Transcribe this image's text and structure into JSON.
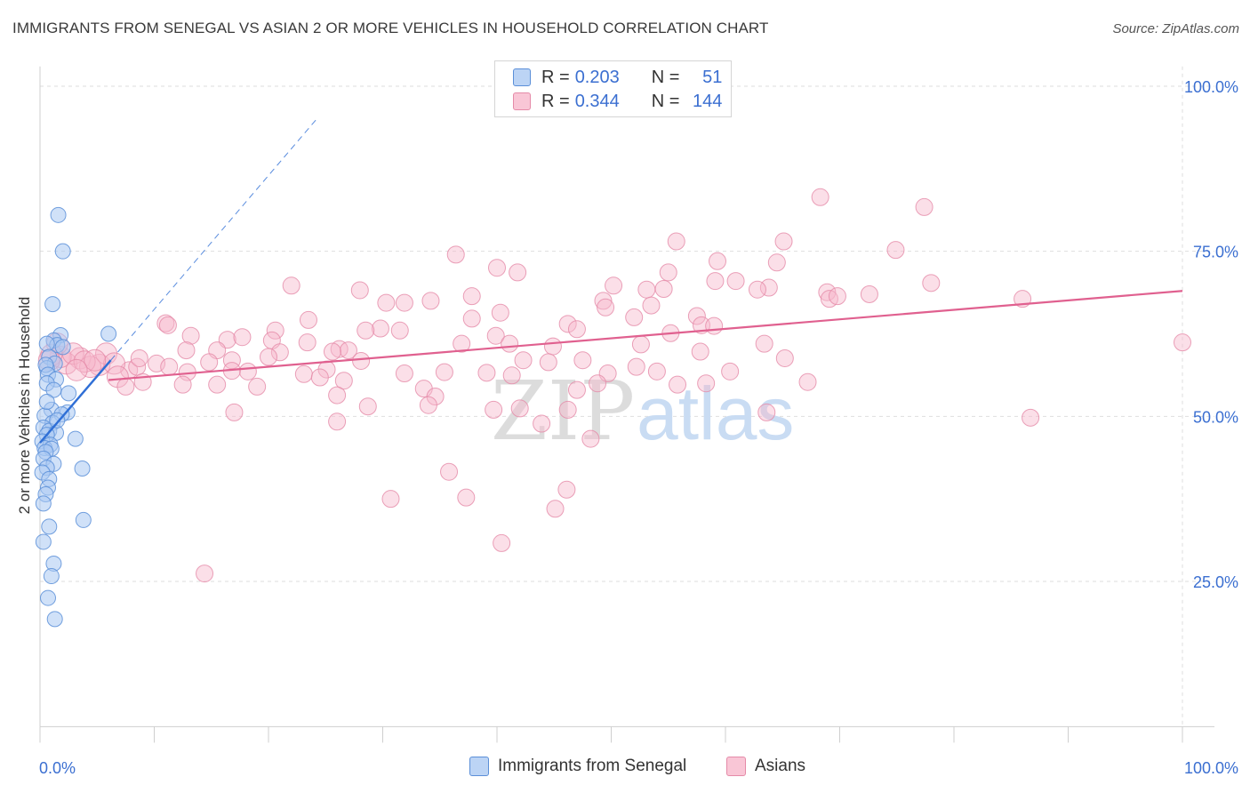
{
  "header": {
    "title": "IMMIGRANTS FROM SENEGAL VS ASIAN 2 OR MORE VEHICLES IN HOUSEHOLD CORRELATION CHART",
    "source": "Source: ZipAtlas.com"
  },
  "watermark": {
    "zip": "ZIP",
    "atlas": "atlas"
  },
  "legend_top": {
    "rows": [
      {
        "r_label": "R =",
        "r_value": "0.203",
        "n_label": "N =",
        "n_value": "51"
      },
      {
        "r_label": "R =",
        "r_value": "0.344",
        "n_label": "N =",
        "n_value": "144"
      }
    ]
  },
  "legend_bottom": {
    "items": [
      {
        "label": "Immigrants from Senegal"
      },
      {
        "label": "Asians"
      }
    ]
  },
  "colors": {
    "blue_fill": "#aac8f2",
    "blue_stroke": "#5b8fd8",
    "blue_line": "#2f6fd6",
    "pink_fill": "#f6b8cc",
    "pink_stroke": "#e58aa8",
    "pink_line": "#e0608f",
    "tick_label": "#3b6fd1"
  },
  "chart_data": {
    "type": "scatter",
    "title": "IMMIGRANTS FROM SENEGAL VS ASIAN 2 OR MORE VEHICLES IN HOUSEHOLD CORRELATION CHART",
    "xlabel": "",
    "ylabel": "2 or more Vehicles in Household",
    "xlim": [
      0,
      100
    ],
    "ylim": [
      3,
      103
    ],
    "x_tick_labels": [
      "0.0%",
      "100.0%"
    ],
    "y_ticks": [
      25,
      50,
      75,
      100
    ],
    "y_tick_labels": [
      "25.0%",
      "50.0%",
      "75.0%",
      "100.0%"
    ],
    "grid": true,
    "legend_placement": "top-center",
    "series": [
      {
        "name": "Immigrants from Senegal",
        "r": 0.203,
        "n": 51,
        "trend": {
          "x": [
            0,
            6.2
          ],
          "y": [
            46,
            58.5
          ]
        },
        "trend_extension": {
          "x": [
            6.2,
            24.2
          ],
          "y": [
            58.5,
            95
          ]
        },
        "points": [
          [
            1.6,
            80.5
          ],
          [
            2.0,
            75
          ],
          [
            1.1,
            67
          ],
          [
            1.8,
            62.3
          ],
          [
            1.2,
            61.5
          ],
          [
            1.5,
            60.8
          ],
          [
            0.6,
            61
          ],
          [
            2.0,
            60.5
          ],
          [
            6.0,
            62.5
          ],
          [
            0.8,
            59
          ],
          [
            1.3,
            58
          ],
          [
            0.6,
            57.3
          ],
          [
            0.5,
            57.8
          ],
          [
            0.7,
            56.3
          ],
          [
            1.4,
            55.6
          ],
          [
            0.6,
            55
          ],
          [
            1.2,
            54
          ],
          [
            2.5,
            53.5
          ],
          [
            2.4,
            50.6
          ],
          [
            1.0,
            51
          ],
          [
            0.4,
            50.1
          ],
          [
            1.9,
            50.3
          ],
          [
            1.1,
            49
          ],
          [
            0.3,
            48.3
          ],
          [
            0.8,
            47.8
          ],
          [
            1.4,
            47.5
          ],
          [
            0.6,
            47.2
          ],
          [
            3.1,
            46.6
          ],
          [
            0.2,
            46.2
          ],
          [
            0.9,
            45.7
          ],
          [
            0.4,
            45.2
          ],
          [
            1.0,
            45.1
          ],
          [
            0.5,
            44.6
          ],
          [
            0.3,
            43.6
          ],
          [
            1.2,
            42.8
          ],
          [
            0.6,
            42.2
          ],
          [
            3.7,
            42.1
          ],
          [
            0.2,
            41.5
          ],
          [
            0.8,
            40.5
          ],
          [
            0.7,
            39.2
          ],
          [
            0.5,
            38.2
          ],
          [
            0.3,
            36.8
          ],
          [
            0.8,
            33.3
          ],
          [
            3.8,
            34.3
          ],
          [
            0.3,
            31.0
          ],
          [
            1.2,
            27.7
          ],
          [
            1.0,
            25.8
          ],
          [
            0.7,
            22.5
          ],
          [
            1.3,
            19.3
          ],
          [
            0.6,
            52.2
          ],
          [
            1.5,
            49.4
          ]
        ]
      },
      {
        "name": "Asians",
        "r": 0.344,
        "n": 144,
        "trend": {
          "x": [
            6.0,
            100
          ],
          "y": [
            55.5,
            69
          ]
        },
        "points": [
          [
            68.3,
            83.2
          ],
          [
            77.4,
            81.7
          ],
          [
            55.7,
            76.5
          ],
          [
            65.1,
            76.5
          ],
          [
            74.9,
            75.2
          ],
          [
            36.4,
            74.5
          ],
          [
            59.3,
            73.5
          ],
          [
            64.5,
            73.3
          ],
          [
            40.0,
            72.5
          ],
          [
            41.8,
            71.8
          ],
          [
            55.0,
            71.8
          ],
          [
            59.1,
            70.5
          ],
          [
            50.2,
            69.8
          ],
          [
            22.0,
            69.8
          ],
          [
            54.6,
            69.3
          ],
          [
            63.8,
            69.5
          ],
          [
            62.8,
            69.2
          ],
          [
            78.0,
            70.2
          ],
          [
            60.9,
            70.5
          ],
          [
            28.0,
            69.1
          ],
          [
            53.1,
            69.2
          ],
          [
            68.9,
            68.8
          ],
          [
            72.6,
            68.5
          ],
          [
            86.0,
            67.8
          ],
          [
            37.8,
            68.2
          ],
          [
            49.3,
            67.5
          ],
          [
            34.2,
            67.5
          ],
          [
            30.3,
            67.2
          ],
          [
            31.9,
            67.2
          ],
          [
            53.5,
            66.8
          ],
          [
            49.5,
            66.5
          ],
          [
            69.1,
            67.8
          ],
          [
            69.8,
            68.2
          ],
          [
            40.3,
            65.7
          ],
          [
            57.5,
            65.2
          ],
          [
            23.5,
            64.6
          ],
          [
            37.8,
            64.8
          ],
          [
            52.0,
            65.0
          ],
          [
            46.2,
            64.0
          ],
          [
            57.9,
            63.8
          ],
          [
            11.0,
            64.1
          ],
          [
            59.0,
            63.7
          ],
          [
            29.8,
            63.3
          ],
          [
            11.2,
            63.8
          ],
          [
            47.0,
            63.2
          ],
          [
            20.6,
            63.0
          ],
          [
            28.5,
            63.0
          ],
          [
            31.5,
            63.0
          ],
          [
            55.2,
            62.6
          ],
          [
            13.2,
            62.2
          ],
          [
            39.9,
            62.2
          ],
          [
            16.4,
            61.6
          ],
          [
            17.7,
            62.0
          ],
          [
            20.3,
            61.5
          ],
          [
            23.4,
            61.2
          ],
          [
            36.9,
            61.0
          ],
          [
            41.1,
            61.0
          ],
          [
            52.6,
            60.9
          ],
          [
            44.9,
            60.6
          ],
          [
            26.2,
            60.2
          ],
          [
            12.8,
            60.0
          ],
          [
            15.5,
            60.0
          ],
          [
            27.0,
            60.0
          ],
          [
            25.6,
            59.8
          ],
          [
            57.8,
            59.8
          ],
          [
            21.0,
            59.7
          ],
          [
            20.0,
            59.0
          ],
          [
            16.8,
            58.5
          ],
          [
            14.8,
            58.2
          ],
          [
            28.1,
            58.4
          ],
          [
            44.5,
            58.2
          ],
          [
            10.2,
            58.0
          ],
          [
            11.3,
            57.5
          ],
          [
            25.1,
            57.1
          ],
          [
            18.2,
            56.8
          ],
          [
            5.2,
            57.8
          ],
          [
            7.8,
            57.0
          ],
          [
            8.5,
            57.5
          ],
          [
            3.5,
            58.8
          ],
          [
            2.3,
            58.0
          ],
          [
            4.4,
            57.5
          ],
          [
            5.8,
            59.5
          ],
          [
            1.8,
            59.0
          ],
          [
            2.9,
            59.5
          ],
          [
            3.9,
            58.3
          ],
          [
            1.5,
            61.0
          ],
          [
            1.0,
            59.3
          ],
          [
            0.8,
            58.5
          ],
          [
            6.5,
            58.0
          ],
          [
            4.8,
            58.5
          ],
          [
            3.2,
            57.0
          ],
          [
            12.9,
            56.7
          ],
          [
            16.8,
            56.9
          ],
          [
            23.1,
            56.4
          ],
          [
            24.5,
            55.9
          ],
          [
            31.9,
            56.5
          ],
          [
            35.4,
            56.7
          ],
          [
            39.1,
            56.6
          ],
          [
            41.3,
            56.2
          ],
          [
            42.3,
            58.5
          ],
          [
            47.5,
            58.5
          ],
          [
            49.7,
            56.5
          ],
          [
            52.2,
            57.5
          ],
          [
            54.0,
            56.8
          ],
          [
            60.4,
            56.8
          ],
          [
            63.4,
            61.0
          ],
          [
            65.2,
            58.8
          ],
          [
            6.8,
            56.0
          ],
          [
            7.5,
            54.5
          ],
          [
            9.0,
            55.2
          ],
          [
            12.5,
            54.8
          ],
          [
            15.5,
            54.8
          ],
          [
            19.0,
            54.5
          ],
          [
            26.6,
            55.4
          ],
          [
            33.6,
            54.2
          ],
          [
            47.0,
            54.0
          ],
          [
            48.8,
            55.0
          ],
          [
            55.8,
            54.8
          ],
          [
            58.3,
            55.0
          ],
          [
            67.2,
            55.2
          ],
          [
            26.0,
            53.2
          ],
          [
            34.6,
            53.0
          ],
          [
            28.7,
            51.5
          ],
          [
            34.0,
            51.7
          ],
          [
            39.7,
            51.0
          ],
          [
            42.0,
            51.2
          ],
          [
            17.0,
            50.6
          ],
          [
            46.2,
            51.0
          ],
          [
            63.6,
            50.6
          ],
          [
            26.0,
            49.2
          ],
          [
            43.9,
            48.9
          ],
          [
            48.2,
            46.6
          ],
          [
            86.7,
            49.8
          ],
          [
            100,
            61.2
          ],
          [
            35.8,
            41.6
          ],
          [
            30.7,
            37.5
          ],
          [
            37.3,
            37.7
          ],
          [
            46.1,
            38.9
          ],
          [
            45.1,
            36.0
          ],
          [
            40.4,
            30.8
          ],
          [
            14.4,
            26.2
          ],
          [
            8.7,
            58.8
          ]
        ]
      }
    ]
  }
}
